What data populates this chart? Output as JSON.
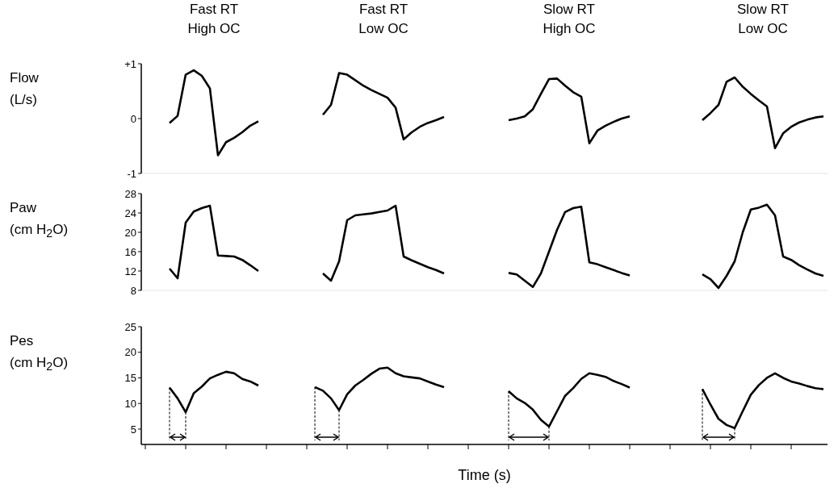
{
  "chart_data": [
    {
      "type": "line",
      "ylabel": "Flow\n(L/s)",
      "annotations": [
        "Fast RT\nHigh OC",
        "Fast RT\nLow OC",
        "Slow RT\nHigh OC",
        "Slow RT\nLow OC"
      ],
      "categories": [
        null,
        null,
        null,
        null,
        null,
        null,
        null,
        null,
        null,
        null,
        null,
        null,
        null,
        null,
        null,
        null,
        null,
        null,
        null,
        null,
        null,
        null,
        null,
        null,
        null,
        null,
        null,
        null,
        null,
        null,
        null,
        null,
        null,
        null,
        null,
        null,
        null,
        null,
        null,
        null,
        null,
        null,
        null,
        null,
        null,
        null,
        null,
        null,
        null,
        null,
        null,
        null,
        null,
        null,
        null,
        null,
        null,
        null,
        null,
        null,
        null,
        null,
        null,
        null,
        null,
        null,
        null,
        null,
        null,
        null,
        null,
        null,
        null,
        null,
        null,
        null,
        null,
        null,
        null,
        null,
        null,
        null,
        null,
        null,
        null
      ],
      "ylim": [
        -1,
        1
      ],
      "yticks": [
        -1,
        0,
        {
          "value": 1,
          "label": "+1"
        }
      ],
      "tick_labels": "y",
      "series": [
        {
          "color": "#000000",
          "values": [
            null,
            null,
            null,
            -0.08,
            0.05,
            0.8,
            0.88,
            0.78,
            0.55,
            -0.67,
            -0.43,
            -0.35,
            -0.25,
            -0.13,
            -0.05,
            null,
            null,
            null,
            null,
            null,
            null,
            null,
            null,
            null,
            null,
            null,
            null,
            null,
            null,
            null,
            null,
            null,
            null,
            null,
            null,
            null,
            null,
            null,
            null,
            null,
            null,
            null,
            null,
            null,
            null,
            null,
            null,
            null,
            null,
            null,
            null,
            null,
            null,
            null,
            null,
            null,
            null,
            null,
            null,
            null,
            null,
            null,
            null,
            null,
            null,
            null,
            null,
            null,
            null,
            null,
            null,
            null,
            null,
            null,
            null,
            null,
            null,
            null,
            null,
            null,
            null,
            null,
            null,
            null,
            null
          ]
        },
        {
          "color": "#000000",
          "values": [
            null,
            null,
            null,
            null,
            null,
            null,
            null,
            null,
            null,
            null,
            null,
            null,
            null,
            null,
            null,
            null,
            null,
            null,
            null,
            null,
            null,
            null,
            0.07,
            0.25,
            0.83,
            0.8,
            0.7,
            0.6,
            0.52,
            0.45,
            0.38,
            0.2,
            -0.38,
            -0.25,
            -0.15,
            -0.08,
            -0.03,
            0.03,
            null,
            null,
            null,
            null,
            null,
            null,
            null,
            null,
            null,
            null,
            null,
            null,
            null,
            null,
            null,
            null,
            null,
            null,
            null,
            null,
            null,
            null,
            null,
            null,
            null,
            null,
            null,
            null,
            null,
            null,
            null,
            null,
            null,
            null,
            null,
            null,
            null,
            null,
            null,
            null,
            null,
            null,
            null,
            null,
            null,
            null,
            null
          ]
        },
        {
          "color": "#000000",
          "values": [
            null,
            null,
            null,
            null,
            null,
            null,
            null,
            null,
            null,
            null,
            null,
            null,
            null,
            null,
            null,
            null,
            null,
            null,
            null,
            null,
            null,
            null,
            null,
            null,
            null,
            null,
            null,
            null,
            null,
            null,
            null,
            null,
            null,
            null,
            null,
            null,
            null,
            null,
            null,
            null,
            null,
            null,
            null,
            null,
            null,
            -0.03,
            0,
            0.04,
            0.17,
            0.45,
            0.72,
            0.73,
            0.6,
            0.48,
            0.4,
            -0.45,
            -0.22,
            -0.13,
            -0.06,
            0,
            0.04,
            null,
            null,
            null,
            null,
            null,
            null,
            null,
            null,
            null,
            null,
            null,
            null,
            null,
            null,
            null,
            null,
            null,
            null,
            null,
            null,
            null,
            null,
            null,
            null
          ]
        },
        {
          "color": "#000000",
          "values": [
            null,
            null,
            null,
            null,
            null,
            null,
            null,
            null,
            null,
            null,
            null,
            null,
            null,
            null,
            null,
            null,
            null,
            null,
            null,
            null,
            null,
            null,
            null,
            null,
            null,
            null,
            null,
            null,
            null,
            null,
            null,
            null,
            null,
            null,
            null,
            null,
            null,
            null,
            null,
            null,
            null,
            null,
            null,
            null,
            null,
            null,
            null,
            null,
            null,
            null,
            null,
            null,
            null,
            null,
            null,
            null,
            null,
            null,
            null,
            null,
            null,
            null,
            null,
            null,
            null,
            null,
            null,
            null,
            null,
            -0.03,
            0.1,
            0.25,
            0.67,
            0.75,
            0.58,
            0.45,
            0.33,
            0.22,
            -0.54,
            -0.27,
            -0.15,
            -0.07,
            -0.02,
            0.02,
            0.04
          ]
        }
      ]
    },
    {
      "type": "line",
      "ylabel": "Paw\n(cm H$_{2}$O)",
      "categories": [
        null,
        null,
        null,
        null,
        null,
        null,
        null,
        null,
        null,
        null,
        null,
        null,
        null,
        null,
        null,
        null,
        null,
        null,
        null,
        null,
        null,
        null,
        null,
        null,
        null,
        null,
        null,
        null,
        null,
        null,
        null,
        null,
        null,
        null,
        null,
        null,
        null,
        null,
        null,
        null,
        null,
        null,
        null,
        null,
        null,
        null,
        null,
        null,
        null,
        null,
        null,
        null,
        null,
        null,
        null,
        null,
        null,
        null,
        null,
        null,
        null,
        null,
        null,
        null,
        null,
        null,
        null,
        null,
        null,
        null,
        null,
        null,
        null,
        null,
        null,
        null,
        null,
        null,
        null,
        null,
        null,
        null,
        null,
        null,
        null
      ],
      "ylim": [
        8,
        28
      ],
      "yticks": [
        8,
        12,
        16,
        20,
        24,
        28
      ],
      "tick_labels": "y",
      "series": [
        {
          "color": "#000000",
          "values": [
            null,
            null,
            null,
            12.5,
            10.5,
            22,
            24.3,
            25,
            25.5,
            15.2,
            15.1,
            15,
            14.3,
            13.2,
            12,
            null,
            null,
            null,
            null,
            null,
            null,
            null,
            null,
            null,
            null,
            null,
            null,
            null,
            null,
            null,
            null,
            null,
            null,
            null,
            null,
            null,
            null,
            null,
            null,
            null,
            null,
            null,
            null,
            null,
            null,
            null,
            null,
            null,
            null,
            null,
            null,
            null,
            null,
            null,
            null,
            null,
            null,
            null,
            null,
            null,
            null,
            null,
            null,
            null,
            null,
            null,
            null,
            null,
            null,
            null,
            null,
            null,
            null,
            null,
            null,
            null,
            null,
            null,
            null,
            null,
            null,
            null,
            null,
            null,
            null
          ]
        },
        {
          "color": "#000000",
          "values": [
            null,
            null,
            null,
            null,
            null,
            null,
            null,
            null,
            null,
            null,
            null,
            null,
            null,
            null,
            null,
            null,
            null,
            null,
            null,
            null,
            null,
            null,
            11.5,
            10,
            14,
            22.5,
            23.5,
            23.7,
            23.9,
            24.2,
            24.5,
            25.5,
            15,
            14.2,
            13.5,
            12.8,
            12.2,
            11.5,
            null,
            null,
            null,
            null,
            null,
            null,
            null,
            null,
            null,
            null,
            null,
            null,
            null,
            null,
            null,
            null,
            null,
            null,
            null,
            null,
            null,
            null,
            null,
            null,
            null,
            null,
            null,
            null,
            null,
            null,
            null,
            null,
            null,
            null,
            null,
            null,
            null,
            null,
            null,
            null,
            null,
            null,
            null,
            null,
            null,
            null,
            null
          ]
        },
        {
          "color": "#000000",
          "values": [
            null,
            null,
            null,
            null,
            null,
            null,
            null,
            null,
            null,
            null,
            null,
            null,
            null,
            null,
            null,
            null,
            null,
            null,
            null,
            null,
            null,
            null,
            null,
            null,
            null,
            null,
            null,
            null,
            null,
            null,
            null,
            null,
            null,
            null,
            null,
            null,
            null,
            null,
            null,
            null,
            null,
            null,
            null,
            null,
            null,
            11.6,
            11.3,
            10,
            8.7,
            11.5,
            16,
            20.5,
            24.2,
            25,
            25.3,
            13.8,
            13.4,
            12.8,
            12.2,
            11.6,
            11.1,
            null,
            null,
            null,
            null,
            null,
            null,
            null,
            null,
            null,
            null,
            null,
            null,
            null,
            null,
            null,
            null,
            null,
            null,
            null,
            null,
            null,
            null,
            null,
            null
          ]
        },
        {
          "color": "#000000",
          "values": [
            null,
            null,
            null,
            null,
            null,
            null,
            null,
            null,
            null,
            null,
            null,
            null,
            null,
            null,
            null,
            null,
            null,
            null,
            null,
            null,
            null,
            null,
            null,
            null,
            null,
            null,
            null,
            null,
            null,
            null,
            null,
            null,
            null,
            null,
            null,
            null,
            null,
            null,
            null,
            null,
            null,
            null,
            null,
            null,
            null,
            null,
            null,
            null,
            null,
            null,
            null,
            null,
            null,
            null,
            null,
            null,
            null,
            null,
            null,
            null,
            null,
            null,
            null,
            null,
            null,
            null,
            null,
            null,
            null,
            11.3,
            10.3,
            8.5,
            11,
            14,
            20,
            24.7,
            25.1,
            25.7,
            23.5,
            15,
            14.3,
            13.2,
            12.3,
            11.5,
            11
          ]
        }
      ]
    },
    {
      "type": "line",
      "ylabel": "Pes\n(cm H$_{2}$O)",
      "xlabel": "Time (s)",
      "categories": [
        null,
        null,
        null,
        null,
        null,
        null,
        null,
        null,
        null,
        null,
        null,
        null,
        null,
        null,
        null,
        null,
        null,
        null,
        null,
        null,
        null,
        null,
        null,
        null,
        null,
        null,
        null,
        null,
        null,
        null,
        null,
        null,
        null,
        null,
        null,
        null,
        null,
        null,
        null,
        null,
        null,
        null,
        null,
        null,
        null,
        null,
        null,
        null,
        null,
        null,
        null,
        null,
        null,
        null,
        null,
        null,
        null,
        null,
        null,
        null,
        null,
        null,
        null,
        null,
        null,
        null,
        null,
        null,
        null,
        null,
        null,
        null,
        null,
        null,
        null,
        null,
        null,
        null,
        null,
        null,
        null,
        null,
        null,
        null,
        null
      ],
      "ylim": [
        2,
        25
      ],
      "yticks": [
        5,
        10,
        15,
        20,
        25
      ],
      "tick_labels": "y",
      "series": [
        {
          "color": "#000000",
          "values": [
            null,
            null,
            null,
            13.1,
            11,
            8.3,
            12,
            13.3,
            14.9,
            15.6,
            16.2,
            15.9,
            14.8,
            14.3,
            13.5,
            null,
            null,
            null,
            null,
            null,
            null,
            null,
            null,
            null,
            null,
            null,
            null,
            null,
            null,
            null,
            null,
            null,
            null,
            null,
            null,
            null,
            null,
            null,
            null,
            null,
            null,
            null,
            null,
            null,
            null,
            null,
            null,
            null,
            null,
            null,
            null,
            null,
            null,
            null,
            null,
            null,
            null,
            null,
            null,
            null,
            null,
            null,
            null,
            null,
            null,
            null,
            null,
            null,
            null,
            null,
            null,
            null,
            null,
            null,
            null,
            null,
            null,
            null,
            null,
            null,
            null,
            null,
            null,
            null,
            null
          ]
        },
        {
          "color": "#000000",
          "values": [
            null,
            null,
            null,
            null,
            null,
            null,
            null,
            null,
            null,
            null,
            null,
            null,
            null,
            null,
            null,
            null,
            null,
            null,
            null,
            null,
            null,
            13.2,
            12.5,
            11,
            8.7,
            11.8,
            13.5,
            14.6,
            15.8,
            16.8,
            17,
            15.9,
            15.3,
            15.1,
            14.9,
            14.3,
            13.7,
            13.2,
            null,
            null,
            null,
            null,
            null,
            null,
            null,
            null,
            null,
            null,
            null,
            null,
            null,
            null,
            null,
            null,
            null,
            null,
            null,
            null,
            null,
            null,
            null,
            null,
            null,
            null,
            null,
            null,
            null,
            null,
            null,
            null,
            null,
            null,
            null,
            null,
            null,
            null,
            null,
            null,
            null,
            null,
            null,
            null,
            null,
            null,
            null
          ]
        },
        {
          "color": "#000000",
          "values": [
            null,
            null,
            null,
            null,
            null,
            null,
            null,
            null,
            null,
            null,
            null,
            null,
            null,
            null,
            null,
            null,
            null,
            null,
            null,
            null,
            null,
            null,
            null,
            null,
            null,
            null,
            null,
            null,
            null,
            null,
            null,
            null,
            null,
            null,
            null,
            null,
            null,
            null,
            null,
            null,
            null,
            null,
            null,
            null,
            null,
            12.4,
            11,
            10.1,
            8.8,
            6.8,
            5.5,
            8.5,
            11.5,
            13,
            14.8,
            15.9,
            15.6,
            15.2,
            14.4,
            13.8,
            13.1,
            null,
            null,
            null,
            null,
            null,
            null,
            null,
            null,
            null,
            null,
            null,
            null,
            null,
            null,
            null,
            null,
            null,
            null,
            null,
            null,
            null,
            null,
            null,
            null
          ]
        },
        {
          "color": "#000000",
          "values": [
            null,
            null,
            null,
            null,
            null,
            null,
            null,
            null,
            null,
            null,
            null,
            null,
            null,
            null,
            null,
            null,
            null,
            null,
            null,
            null,
            null,
            null,
            null,
            null,
            null,
            null,
            null,
            null,
            null,
            null,
            null,
            null,
            null,
            null,
            null,
            null,
            null,
            null,
            null,
            null,
            null,
            null,
            null,
            null,
            null,
            null,
            null,
            null,
            null,
            null,
            null,
            null,
            null,
            null,
            null,
            null,
            null,
            null,
            null,
            null,
            null,
            null,
            null,
            null,
            null,
            null,
            null,
            null,
            null,
            12.8,
            9.8,
            7,
            5.8,
            5.2,
            8.5,
            11.7,
            13.6,
            15,
            15.9,
            15,
            14.3,
            13.9,
            13.4,
            13,
            12.8
          ]
        }
      ]
    }
  ]
}
